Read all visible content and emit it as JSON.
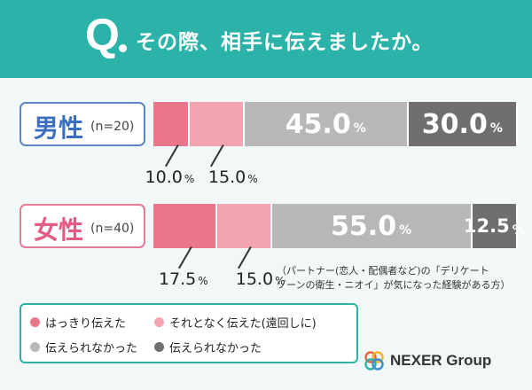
{
  "header": {
    "q_letter": "Q",
    "question": "その際、相手に伝えましたか。"
  },
  "groups": [
    {
      "label": "男性",
      "n": "(n=20)"
    },
    {
      "label": "女性",
      "n": "(n=40)"
    }
  ],
  "legend": [
    {
      "label": "はっきり伝えた",
      "color": "#e9768a"
    },
    {
      "label": "それとなく伝えた(遠回しに)",
      "color": "#f2a5b0"
    },
    {
      "label": "伝えられなかった",
      "color": "#b8b8b8"
    },
    {
      "label": "伝えられなかった",
      "color": "#6f6f6f"
    }
  ],
  "note": [
    "（パートナー(恋人・配偶者など)の「デリケート",
    "ゾーンの衛生・ニオイ」が気になった経験がある方）"
  ],
  "brand": "NEXER Group",
  "chart_data": {
    "type": "bar",
    "orientation": "horizontal",
    "stacked": true,
    "percent_stacked": true,
    "title": "その際、相手に伝えましたか。",
    "categories": [
      "男性(n=20)",
      "女性(n=40)"
    ],
    "series": [
      {
        "name": "はっきり伝えた",
        "values": [
          10.0,
          17.5
        ],
        "color": "#e9768a"
      },
      {
        "name": "それとなく伝えた(遠回しに)",
        "values": [
          15.0,
          15.0
        ],
        "color": "#f2a5b0"
      },
      {
        "name": "伝えられなかった",
        "values": [
          45.0,
          55.0
        ],
        "color": "#b8b8b8"
      },
      {
        "name": "伝えられなかった",
        "values": [
          30.0,
          12.5
        ],
        "color": "#6f6f6f"
      }
    ],
    "value_labels": [
      [
        "10.0",
        "15.0",
        "45.0",
        "30.0"
      ],
      [
        "17.5",
        "15.0",
        "55.0",
        "12.5"
      ]
    ],
    "unit": "%",
    "xlim": [
      0,
      100
    ],
    "grid": false,
    "legend_position": "bottom-left"
  }
}
